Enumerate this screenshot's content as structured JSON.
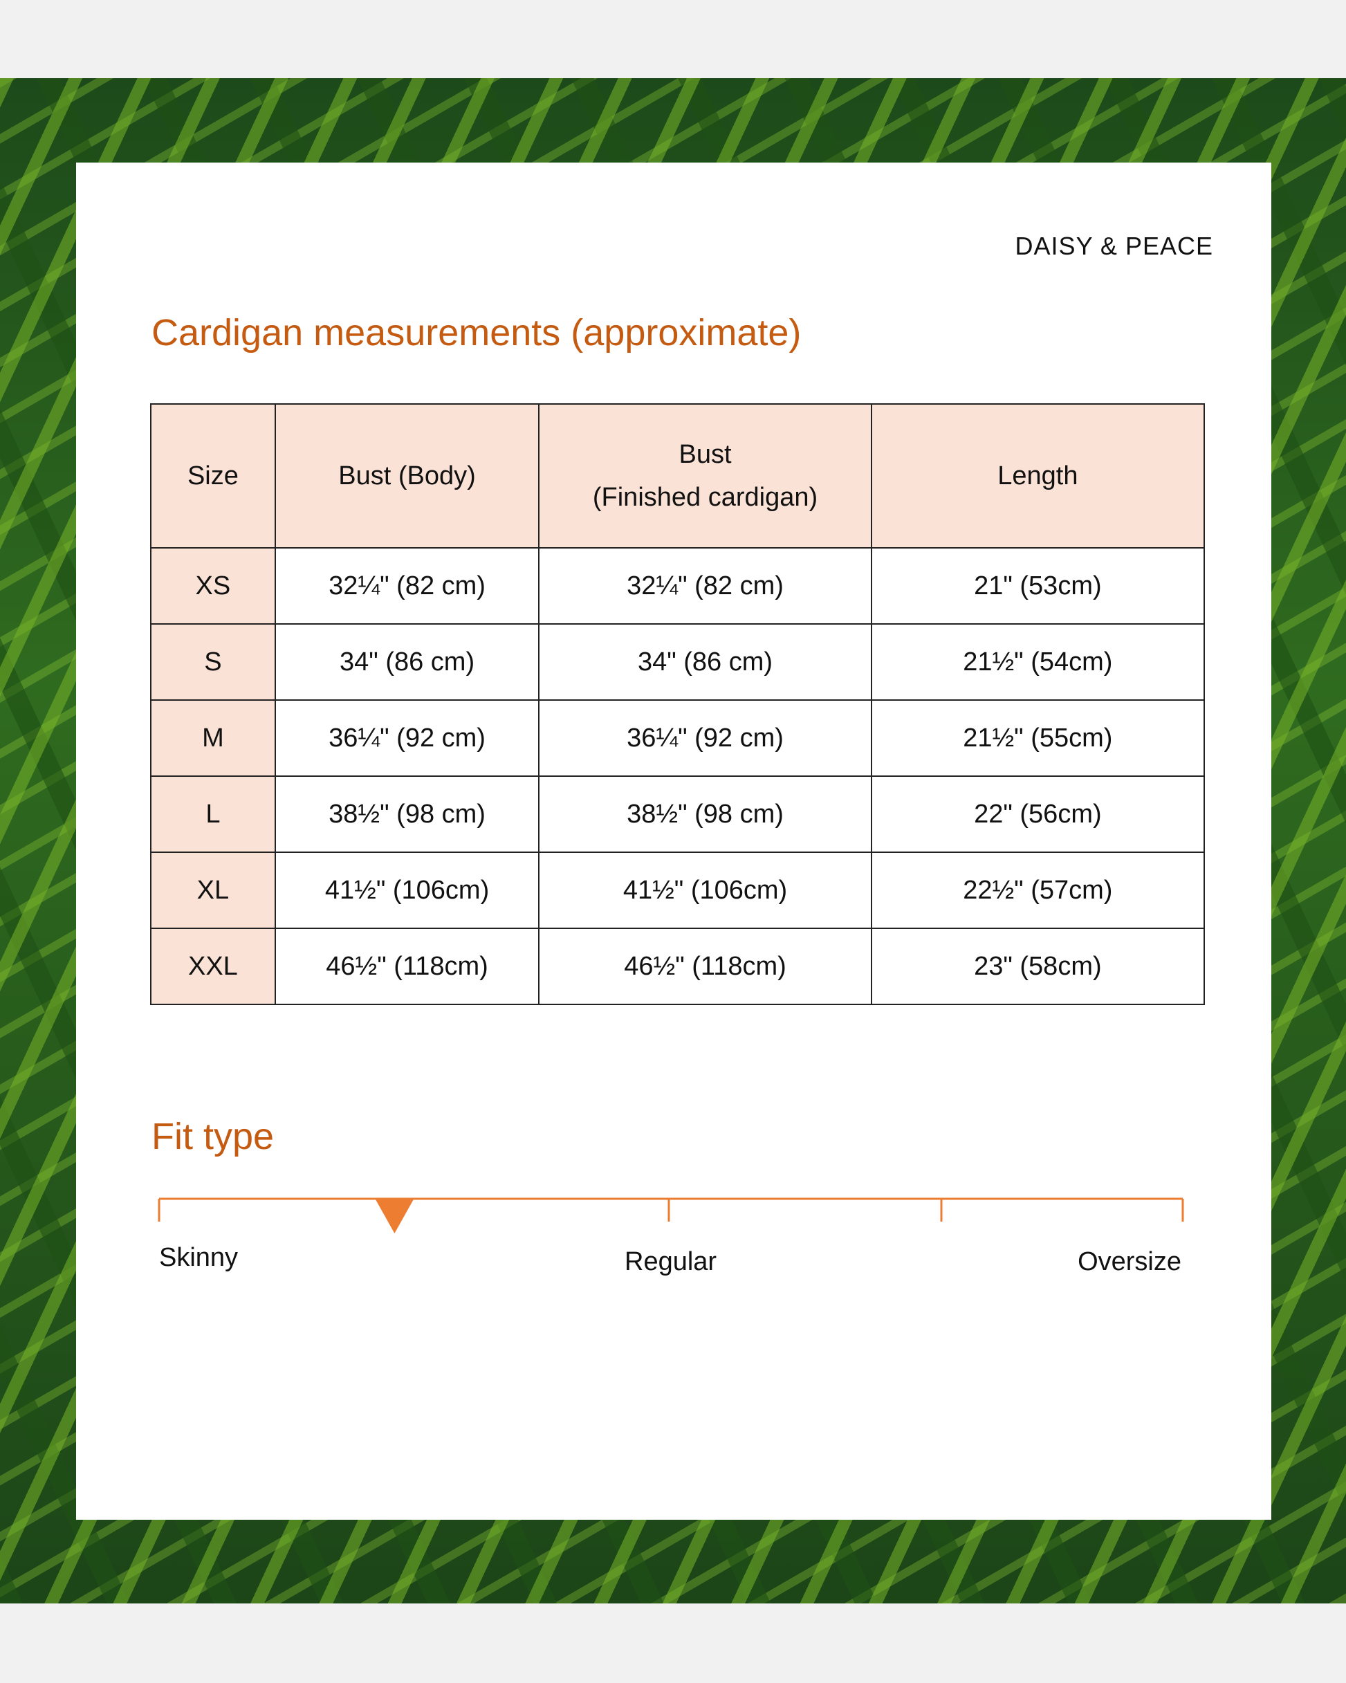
{
  "brand": "DAISY & PEACE",
  "title": "Cardigan measurements (approximate)",
  "table": {
    "headers": [
      "Size",
      "Bust (Body)",
      "Bust",
      "(Finished cardigan)",
      "Length"
    ],
    "rows": [
      [
        "XS",
        "32¼\" (82 cm)",
        "32¼\" (82 cm)",
        "21\" (53cm)"
      ],
      [
        "S",
        "34\" (86 cm)",
        "34\" (86 cm)",
        "21½\" (54cm)"
      ],
      [
        "M",
        "36¼\" (92 cm)",
        "36¼\" (92 cm)",
        "21½\" (55cm)"
      ],
      [
        "L",
        "38½\" (98 cm)",
        "38½\" (98 cm)",
        "22\" (56cm)"
      ],
      [
        "XL",
        "41½\" (106cm)",
        "41½\" (106cm)",
        "22½\" (57cm)"
      ],
      [
        "XXL",
        "46½\" (118cm)",
        "46½\" (118cm)",
        "23\" (58cm)"
      ]
    ]
  },
  "fit": {
    "title": "Fit type",
    "labels": [
      "Skinny",
      "Regular",
      "Oversize"
    ],
    "marker_position": 0.23,
    "accent_color": "#ed7d31"
  },
  "colors": {
    "heading": "#c55a11",
    "header_fill": "#fbe2d6"
  }
}
